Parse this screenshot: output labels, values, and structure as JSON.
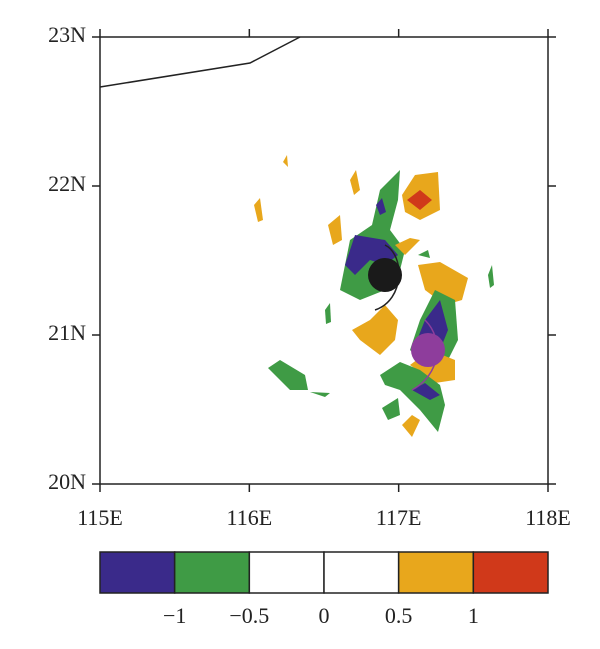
{
  "map": {
    "xlim": [
      115,
      118
    ],
    "ylim": [
      20,
      23
    ],
    "xticks": [
      {
        "value": 115,
        "label": "115E"
      },
      {
        "value": 116,
        "label": "116E"
      },
      {
        "value": 117,
        "label": "117E"
      },
      {
        "value": 118,
        "label": "118E"
      }
    ],
    "yticks": [
      {
        "value": 20,
        "label": "20N"
      },
      {
        "value": 21,
        "label": "21N"
      },
      {
        "value": 22,
        "label": "22N"
      },
      {
        "value": 23,
        "label": "23N"
      }
    ],
    "colorbar": {
      "colors": [
        "#3a2a8a",
        "#3f9b45",
        "#ffffff",
        "#ffffff",
        "#e8a71c",
        "#d0391a"
      ],
      "levels": [
        {
          "value": -1,
          "label": "−1"
        },
        {
          "value": -0.5,
          "label": "−0.5"
        },
        0,
        0.5,
        1
      ]
    }
  }
}
